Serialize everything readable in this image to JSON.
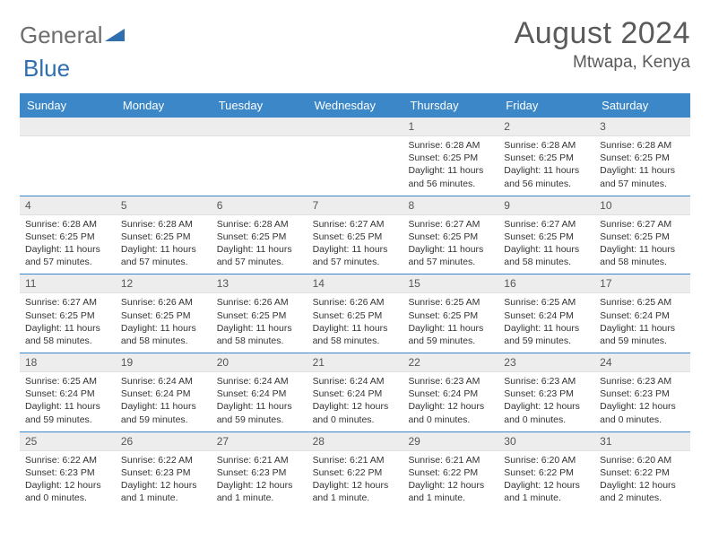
{
  "brand": {
    "part1": "General",
    "part2": "Blue"
  },
  "title": "August 2024",
  "location": "Mtwapa, Kenya",
  "colors": {
    "header_bg": "#3b87c8",
    "header_text": "#ffffff",
    "daynum_bg": "#ededed",
    "text": "#333333",
    "divider": "#3b87c8"
  },
  "weekdays": [
    "Sunday",
    "Monday",
    "Tuesday",
    "Wednesday",
    "Thursday",
    "Friday",
    "Saturday"
  ],
  "weeks": [
    [
      {
        "n": "",
        "sr": "",
        "ss": "",
        "dl": ""
      },
      {
        "n": "",
        "sr": "",
        "ss": "",
        "dl": ""
      },
      {
        "n": "",
        "sr": "",
        "ss": "",
        "dl": ""
      },
      {
        "n": "",
        "sr": "",
        "ss": "",
        "dl": ""
      },
      {
        "n": "1",
        "sr": "Sunrise: 6:28 AM",
        "ss": "Sunset: 6:25 PM",
        "dl": "Daylight: 11 hours and 56 minutes."
      },
      {
        "n": "2",
        "sr": "Sunrise: 6:28 AM",
        "ss": "Sunset: 6:25 PM",
        "dl": "Daylight: 11 hours and 56 minutes."
      },
      {
        "n": "3",
        "sr": "Sunrise: 6:28 AM",
        "ss": "Sunset: 6:25 PM",
        "dl": "Daylight: 11 hours and 57 minutes."
      }
    ],
    [
      {
        "n": "4",
        "sr": "Sunrise: 6:28 AM",
        "ss": "Sunset: 6:25 PM",
        "dl": "Daylight: 11 hours and 57 minutes."
      },
      {
        "n": "5",
        "sr": "Sunrise: 6:28 AM",
        "ss": "Sunset: 6:25 PM",
        "dl": "Daylight: 11 hours and 57 minutes."
      },
      {
        "n": "6",
        "sr": "Sunrise: 6:28 AM",
        "ss": "Sunset: 6:25 PM",
        "dl": "Daylight: 11 hours and 57 minutes."
      },
      {
        "n": "7",
        "sr": "Sunrise: 6:27 AM",
        "ss": "Sunset: 6:25 PM",
        "dl": "Daylight: 11 hours and 57 minutes."
      },
      {
        "n": "8",
        "sr": "Sunrise: 6:27 AM",
        "ss": "Sunset: 6:25 PM",
        "dl": "Daylight: 11 hours and 57 minutes."
      },
      {
        "n": "9",
        "sr": "Sunrise: 6:27 AM",
        "ss": "Sunset: 6:25 PM",
        "dl": "Daylight: 11 hours and 58 minutes."
      },
      {
        "n": "10",
        "sr": "Sunrise: 6:27 AM",
        "ss": "Sunset: 6:25 PM",
        "dl": "Daylight: 11 hours and 58 minutes."
      }
    ],
    [
      {
        "n": "11",
        "sr": "Sunrise: 6:27 AM",
        "ss": "Sunset: 6:25 PM",
        "dl": "Daylight: 11 hours and 58 minutes."
      },
      {
        "n": "12",
        "sr": "Sunrise: 6:26 AM",
        "ss": "Sunset: 6:25 PM",
        "dl": "Daylight: 11 hours and 58 minutes."
      },
      {
        "n": "13",
        "sr": "Sunrise: 6:26 AM",
        "ss": "Sunset: 6:25 PM",
        "dl": "Daylight: 11 hours and 58 minutes."
      },
      {
        "n": "14",
        "sr": "Sunrise: 6:26 AM",
        "ss": "Sunset: 6:25 PM",
        "dl": "Daylight: 11 hours and 58 minutes."
      },
      {
        "n": "15",
        "sr": "Sunrise: 6:25 AM",
        "ss": "Sunset: 6:25 PM",
        "dl": "Daylight: 11 hours and 59 minutes."
      },
      {
        "n": "16",
        "sr": "Sunrise: 6:25 AM",
        "ss": "Sunset: 6:24 PM",
        "dl": "Daylight: 11 hours and 59 minutes."
      },
      {
        "n": "17",
        "sr": "Sunrise: 6:25 AM",
        "ss": "Sunset: 6:24 PM",
        "dl": "Daylight: 11 hours and 59 minutes."
      }
    ],
    [
      {
        "n": "18",
        "sr": "Sunrise: 6:25 AM",
        "ss": "Sunset: 6:24 PM",
        "dl": "Daylight: 11 hours and 59 minutes."
      },
      {
        "n": "19",
        "sr": "Sunrise: 6:24 AM",
        "ss": "Sunset: 6:24 PM",
        "dl": "Daylight: 11 hours and 59 minutes."
      },
      {
        "n": "20",
        "sr": "Sunrise: 6:24 AM",
        "ss": "Sunset: 6:24 PM",
        "dl": "Daylight: 11 hours and 59 minutes."
      },
      {
        "n": "21",
        "sr": "Sunrise: 6:24 AM",
        "ss": "Sunset: 6:24 PM",
        "dl": "Daylight: 12 hours and 0 minutes."
      },
      {
        "n": "22",
        "sr": "Sunrise: 6:23 AM",
        "ss": "Sunset: 6:24 PM",
        "dl": "Daylight: 12 hours and 0 minutes."
      },
      {
        "n": "23",
        "sr": "Sunrise: 6:23 AM",
        "ss": "Sunset: 6:23 PM",
        "dl": "Daylight: 12 hours and 0 minutes."
      },
      {
        "n": "24",
        "sr": "Sunrise: 6:23 AM",
        "ss": "Sunset: 6:23 PM",
        "dl": "Daylight: 12 hours and 0 minutes."
      }
    ],
    [
      {
        "n": "25",
        "sr": "Sunrise: 6:22 AM",
        "ss": "Sunset: 6:23 PM",
        "dl": "Daylight: 12 hours and 0 minutes."
      },
      {
        "n": "26",
        "sr": "Sunrise: 6:22 AM",
        "ss": "Sunset: 6:23 PM",
        "dl": "Daylight: 12 hours and 1 minute."
      },
      {
        "n": "27",
        "sr": "Sunrise: 6:21 AM",
        "ss": "Sunset: 6:23 PM",
        "dl": "Daylight: 12 hours and 1 minute."
      },
      {
        "n": "28",
        "sr": "Sunrise: 6:21 AM",
        "ss": "Sunset: 6:22 PM",
        "dl": "Daylight: 12 hours and 1 minute."
      },
      {
        "n": "29",
        "sr": "Sunrise: 6:21 AM",
        "ss": "Sunset: 6:22 PM",
        "dl": "Daylight: 12 hours and 1 minute."
      },
      {
        "n": "30",
        "sr": "Sunrise: 6:20 AM",
        "ss": "Sunset: 6:22 PM",
        "dl": "Daylight: 12 hours and 1 minute."
      },
      {
        "n": "31",
        "sr": "Sunrise: 6:20 AM",
        "ss": "Sunset: 6:22 PM",
        "dl": "Daylight: 12 hours and 2 minutes."
      }
    ]
  ]
}
